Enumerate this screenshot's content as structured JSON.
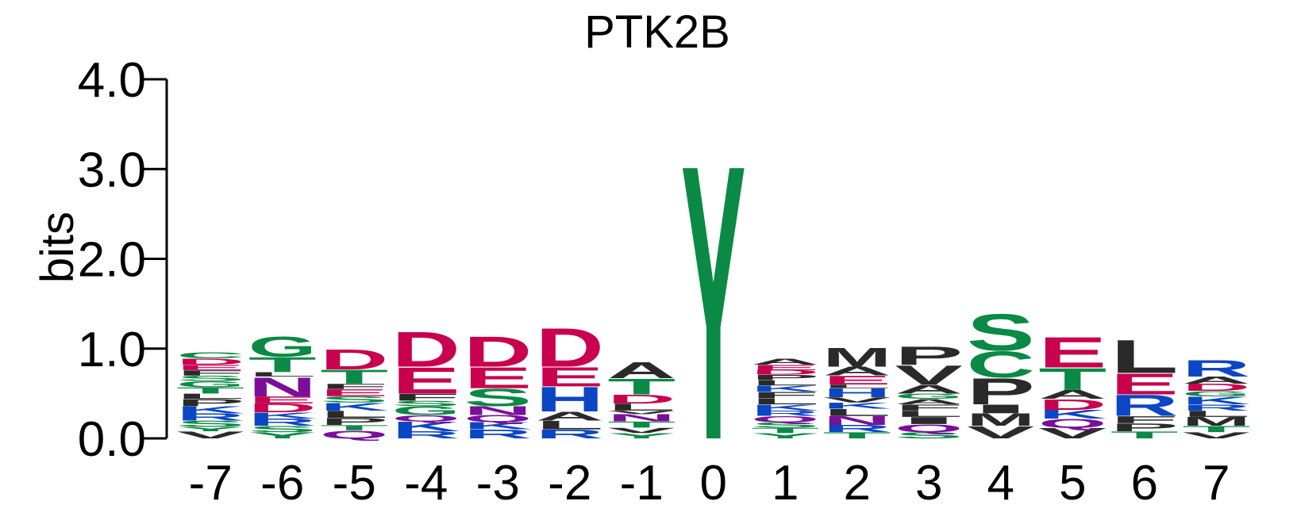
{
  "chart_data": {
    "type": "sequence-logo",
    "title": "PTK2B",
    "ylabel": "bits",
    "xlabel": "",
    "ylim": [
      0,
      4
    ],
    "y_ticks": [
      "0.0",
      "1.0",
      "2.0",
      "3.0",
      "4.0"
    ],
    "y_tick_values": [
      0,
      1,
      2,
      3,
      4
    ],
    "grid": false,
    "legend": "none",
    "positions": [
      {
        "label": "-7",
        "stack": [
          [
            "V",
            0.08
          ],
          [
            "Y",
            0.05
          ],
          [
            "S",
            0.07
          ],
          [
            "R",
            0.08
          ],
          [
            "K",
            0.08
          ],
          [
            "P",
            0.08
          ],
          [
            "L",
            0.06
          ],
          [
            "T",
            0.07
          ],
          [
            "G",
            0.07
          ],
          [
            "S",
            0.06
          ],
          [
            "F",
            0.06
          ],
          [
            "E",
            0.06
          ],
          [
            "D",
            0.07
          ],
          [
            "C",
            0.07
          ]
        ]
      },
      {
        "label": "-6",
        "stack": [
          [
            "Y",
            0.07
          ],
          [
            "S",
            0.07
          ],
          [
            "R",
            0.08
          ],
          [
            "K",
            0.07
          ],
          [
            "D",
            0.1
          ],
          [
            "E",
            0.08
          ],
          [
            "N",
            0.22
          ],
          [
            "L",
            0.05
          ],
          [
            "T",
            0.17
          ],
          [
            "G",
            0.23
          ]
        ]
      },
      {
        "label": "-5",
        "stack": [
          [
            "Q",
            0.09
          ],
          [
            "T",
            0.06
          ],
          [
            "P",
            0.08
          ],
          [
            "L",
            0.08
          ],
          [
            "K",
            0.09
          ],
          [
            "S",
            0.07
          ],
          [
            "E",
            0.08
          ],
          [
            "F",
            0.06
          ],
          [
            "T",
            0.16
          ],
          [
            "D",
            0.23
          ]
        ]
      },
      {
        "label": "-4",
        "stack": [
          [
            "R",
            0.08
          ],
          [
            "K",
            0.11
          ],
          [
            "Q",
            0.07
          ],
          [
            "G",
            0.1
          ],
          [
            "S",
            0.06
          ],
          [
            "F",
            0.08
          ],
          [
            "E",
            0.3
          ],
          [
            "D",
            0.4
          ]
        ]
      },
      {
        "label": "-3",
        "stack": [
          [
            "R",
            0.1
          ],
          [
            "K",
            0.08
          ],
          [
            "Q",
            0.08
          ],
          [
            "N",
            0.1
          ],
          [
            "S",
            0.2
          ],
          [
            "E",
            0.24
          ],
          [
            "D",
            0.35
          ]
        ]
      },
      {
        "label": "-2",
        "stack": [
          [
            "R",
            0.1
          ],
          [
            "L",
            0.1
          ],
          [
            "A",
            0.1
          ],
          [
            "H",
            0.28
          ],
          [
            "E",
            0.22
          ],
          [
            "D",
            0.44
          ]
        ]
      },
      {
        "label": "-1",
        "stack": [
          [
            "Y",
            0.06
          ],
          [
            "V",
            0.06
          ],
          [
            "T",
            0.07
          ],
          [
            "N",
            0.08
          ],
          [
            "V",
            0.04
          ],
          [
            "L",
            0.08
          ],
          [
            "D",
            0.1
          ],
          [
            "T",
            0.18
          ],
          [
            "A",
            0.18
          ]
        ]
      },
      {
        "label": "0",
        "stack": [
          [
            "Y",
            3.15
          ]
        ]
      },
      {
        "label": "1",
        "stack": [
          [
            "Y",
            0.06
          ],
          [
            "T",
            0.06
          ],
          [
            "S",
            0.06
          ],
          [
            "Q",
            0.07
          ],
          [
            "R",
            0.06
          ],
          [
            "K",
            0.07
          ],
          [
            "L",
            0.07
          ],
          [
            "F",
            0.07
          ],
          [
            "K",
            0.07
          ],
          [
            "L",
            0.06
          ],
          [
            "P",
            0.06
          ],
          [
            "D",
            0.05
          ],
          [
            "E",
            0.06
          ],
          [
            "A",
            0.07
          ]
        ]
      },
      {
        "label": "2",
        "stack": [
          [
            "T",
            0.07
          ],
          [
            "R",
            0.08
          ],
          [
            "N",
            0.1
          ],
          [
            "L",
            0.08
          ],
          [
            "K",
            0.07
          ],
          [
            "V",
            0.06
          ],
          [
            "H",
            0.1
          ],
          [
            "L",
            0.04
          ],
          [
            "E",
            0.1
          ],
          [
            "A",
            0.1
          ],
          [
            "M",
            0.22
          ]
        ]
      },
      {
        "label": "3",
        "stack": [
          [
            "S",
            0.07
          ],
          [
            "Q",
            0.09
          ],
          [
            "I",
            0.08
          ],
          [
            "L",
            0.07
          ],
          [
            "F",
            0.07
          ],
          [
            "A",
            0.06
          ],
          [
            "G",
            0.06
          ],
          [
            "A",
            0.1
          ],
          [
            "V",
            0.22
          ],
          [
            "P",
            0.21
          ]
        ]
      },
      {
        "label": "4",
        "stack": [
          [
            "V",
            0.14
          ],
          [
            "M",
            0.14
          ],
          [
            "I",
            0.1
          ],
          [
            "P",
            0.3
          ],
          [
            "C",
            0.3
          ],
          [
            "S",
            0.42
          ]
        ]
      },
      {
        "label": "5",
        "stack": [
          [
            "V",
            0.12
          ],
          [
            "Q",
            0.1
          ],
          [
            "K",
            0.1
          ],
          [
            "D",
            0.12
          ],
          [
            "A",
            0.1
          ],
          [
            "T",
            0.25
          ],
          [
            "E",
            0.35
          ]
        ]
      },
      {
        "label": "6",
        "stack": [
          [
            "T",
            0.08
          ],
          [
            "P",
            0.09
          ],
          [
            "F",
            0.08
          ],
          [
            "R",
            0.24
          ],
          [
            "E",
            0.24
          ],
          [
            "L",
            0.38
          ]
        ]
      },
      {
        "label": "7",
        "stack": [
          [
            "V",
            0.07
          ],
          [
            "T",
            0.07
          ],
          [
            "M",
            0.1
          ],
          [
            "L",
            0.07
          ],
          [
            "R",
            0.07
          ],
          [
            "K",
            0.09
          ],
          [
            "G",
            0.06
          ],
          [
            "D",
            0.08
          ],
          [
            "A",
            0.08
          ],
          [
            "R",
            0.19
          ]
        ]
      }
    ]
  },
  "colors": {
    "polar": "#0a8a45",
    "acidic": "#c8004e",
    "basic": "#0b46c4",
    "amide": "#7a0f9a",
    "hydrophobic": "#2a2a2a",
    "axis": "#000000"
  },
  "residue_groups": {
    "G": "polar",
    "S": "polar",
    "T": "polar",
    "Y": "polar",
    "C": "polar",
    "D": "acidic",
    "E": "acidic",
    "K": "basic",
    "R": "basic",
    "H": "basic",
    "N": "amide",
    "Q": "amide",
    "A": "hydrophobic",
    "V": "hydrophobic",
    "L": "hydrophobic",
    "I": "hydrophobic",
    "P": "hydrophobic",
    "W": "hydrophobic",
    "F": "hydrophobic",
    "M": "hydrophobic"
  }
}
